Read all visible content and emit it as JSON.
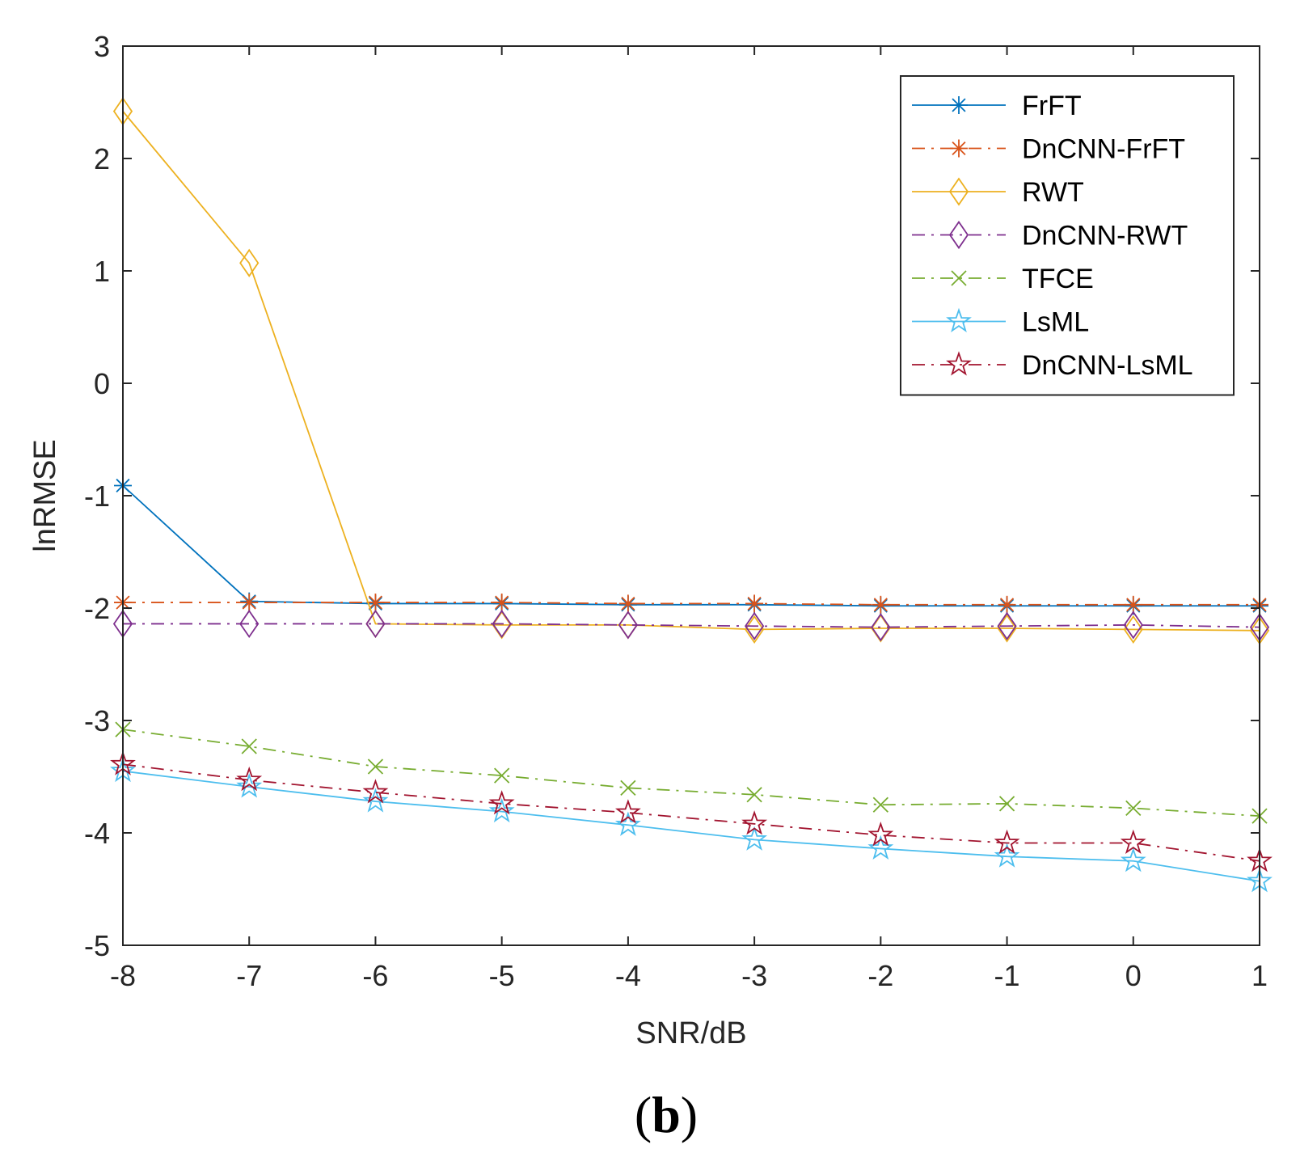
{
  "chart_data": {
    "type": "line",
    "title": "",
    "xlabel": "SNR/dB",
    "ylabel": "lnRMSE",
    "panel_label_open": "(",
    "panel_label_letter": "b",
    "panel_label_close": ")",
    "xlim": [
      -8,
      1
    ],
    "ylim": [
      -5,
      3
    ],
    "xticks": [
      -8,
      -7,
      -6,
      -5,
      -4,
      -3,
      -2,
      -1,
      0,
      1
    ],
    "yticks": [
      -5,
      -4,
      -3,
      -2,
      -1,
      0,
      1,
      2,
      3
    ],
    "x": [
      -8,
      -7,
      -6,
      -5,
      -4,
      -3,
      -2,
      -1,
      0,
      1
    ],
    "grid": false,
    "legend_position": "top-right",
    "series": [
      {
        "name": "FrFT",
        "color": "#0072BD",
        "line": "solid",
        "marker": "asterisk",
        "values": [
          -0.91,
          -1.94,
          -1.96,
          -1.96,
          -1.97,
          -1.97,
          -1.98,
          -1.98,
          -1.98,
          -1.98
        ]
      },
      {
        "name": "DnCNN-FrFT",
        "color": "#D95319",
        "line": "dashdot",
        "marker": "asterisk",
        "values": [
          -1.95,
          -1.95,
          -1.95,
          -1.95,
          -1.96,
          -1.96,
          -1.97,
          -1.97,
          -1.97,
          -1.97
        ]
      },
      {
        "name": "RWT",
        "color": "#EDB120",
        "line": "solid",
        "marker": "diamond",
        "values": [
          2.42,
          1.07,
          -2.14,
          -2.15,
          -2.15,
          -2.19,
          -2.18,
          -2.18,
          -2.19,
          -2.2
        ]
      },
      {
        "name": "DnCNN-RWT",
        "color": "#7E2F8E",
        "line": "dashdot",
        "marker": "diamond",
        "values": [
          -2.14,
          -2.14,
          -2.14,
          -2.14,
          -2.15,
          -2.16,
          -2.17,
          -2.16,
          -2.15,
          -2.17
        ]
      },
      {
        "name": "TFCE",
        "color": "#77AC30",
        "line": "dashdot",
        "marker": "x",
        "values": [
          -3.08,
          -3.23,
          -3.41,
          -3.49,
          -3.6,
          -3.66,
          -3.75,
          -3.74,
          -3.78,
          -3.85
        ]
      },
      {
        "name": "LsML",
        "color": "#4DBEEE",
        "line": "solid",
        "marker": "star",
        "values": [
          -3.45,
          -3.59,
          -3.72,
          -3.81,
          -3.93,
          -4.06,
          -4.14,
          -4.21,
          -4.25,
          -4.43
        ]
      },
      {
        "name": "DnCNN-LsML",
        "color": "#A2142F",
        "line": "dashdot",
        "marker": "star",
        "values": [
          -3.39,
          -3.53,
          -3.64,
          -3.74,
          -3.82,
          -3.92,
          -4.02,
          -4.09,
          -4.09,
          -4.25
        ]
      }
    ]
  }
}
